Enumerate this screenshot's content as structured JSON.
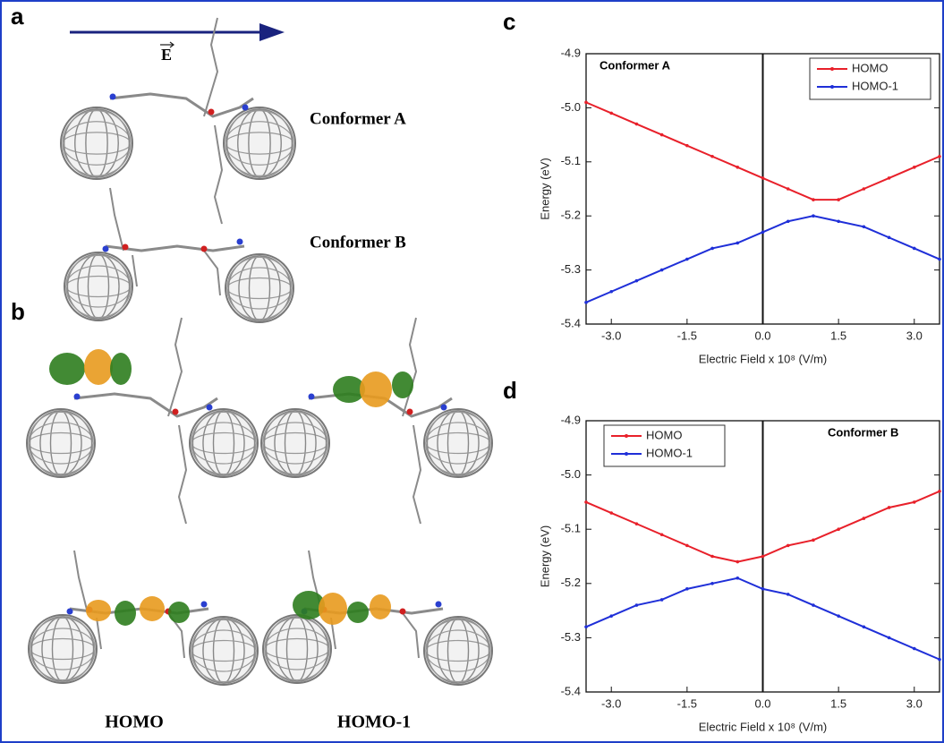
{
  "panel_labels": [
    "a",
    "b",
    "c",
    "d"
  ],
  "panel_a": {
    "field_label": "E",
    "conformers": [
      "Conformer A",
      "Conformer B"
    ]
  },
  "panel_b": {
    "orbitals": [
      "HOMO",
      "HOMO-1"
    ]
  },
  "chart_data": [
    {
      "type": "line",
      "annotation": "Conformer A",
      "legend": "upper right",
      "x_label": "Electric Field x 10⁸ (V/m)",
      "y_label": "Energy (eV)",
      "x": [
        -3.5,
        -3,
        -2.5,
        -2,
        -1.5,
        -1,
        -0.5,
        0,
        0.5,
        1,
        1.5,
        2,
        2.5,
        3,
        3.5
      ],
      "series": [
        {
          "name": "HOMO",
          "color": "#e8202a",
          "values": [
            -4.99,
            -5.01,
            -5.03,
            -5.05,
            -5.07,
            -5.09,
            -5.11,
            -5.13,
            -5.15,
            -5.17,
            -5.17,
            -5.15,
            -5.13,
            -5.11,
            -5.09
          ]
        },
        {
          "name": "HOMO-1",
          "color": "#1f2fd8",
          "values": [
            -5.36,
            -5.34,
            -5.32,
            -5.3,
            -5.28,
            -5.26,
            -5.25,
            -5.23,
            -5.21,
            -5.2,
            -5.21,
            -5.22,
            -5.24,
            -5.26,
            -5.28
          ]
        }
      ],
      "xlim": [
        -3.5,
        3.5
      ],
      "xticks": [
        {
          "value": -3,
          "label": "-3.0"
        },
        {
          "value": -1.5,
          "label": "-1.5"
        },
        {
          "value": 0,
          "label": "0.0"
        },
        {
          "value": 1.5,
          "label": "1.5"
        },
        {
          "value": 3,
          "label": "3.0"
        }
      ],
      "ylim": [
        -5.4,
        -4.9
      ],
      "yticks": [
        {
          "value": -5.4,
          "label": "-5.4"
        },
        {
          "value": -5.3,
          "label": "-5.3"
        },
        {
          "value": -5.2,
          "label": "-5.2"
        },
        {
          "value": -5.1,
          "label": "-5.1"
        },
        {
          "value": -5,
          "label": "-5.0"
        },
        -4.9
      ],
      "zero_line": 0
    },
    {
      "type": "line",
      "annotation": "Conformer B",
      "legend": "upper left",
      "x_label": "Electric Field x 10⁸ (V/m)",
      "y_label": "Energy (eV)",
      "x": [
        -3.5,
        -3,
        -2.5,
        -2,
        -1.5,
        -1,
        -0.5,
        0,
        0.5,
        1,
        1.5,
        2,
        2.5,
        3,
        3.5
      ],
      "series": [
        {
          "name": "HOMO",
          "color": "#e8202a",
          "values": [
            -5.05,
            -5.07,
            -5.09,
            -5.11,
            -5.13,
            -5.15,
            -5.16,
            -5.15,
            -5.13,
            -5.12,
            -5.1,
            -5.08,
            -5.06,
            -5.05,
            -5.03
          ]
        },
        {
          "name": "HOMO-1",
          "color": "#1f2fd8",
          "values": [
            -5.28,
            -5.26,
            -5.24,
            -5.23,
            -5.21,
            -5.2,
            -5.19,
            -5.21,
            -5.22,
            -5.24,
            -5.26,
            -5.28,
            -5.3,
            -5.32,
            -5.34
          ]
        }
      ],
      "xlim": [
        -3.5,
        3.5
      ],
      "xticks": [
        {
          "value": -3,
          "label": "-3.0"
        },
        {
          "value": -1.5,
          "label": "-1.5"
        },
        {
          "value": 0,
          "label": "0.0"
        },
        {
          "value": 1.5,
          "label": "1.5"
        },
        {
          "value": 3,
          "label": "3.0"
        }
      ],
      "ylim": [
        -5.4,
        -4.9
      ],
      "yticks": [
        {
          "value": -5.4,
          "label": "-5.4"
        },
        {
          "value": -5.3,
          "label": "-5.3"
        },
        {
          "value": -5.2,
          "label": "-5.2"
        },
        {
          "value": -5.1,
          "label": "-5.1"
        },
        {
          "value": -5,
          "label": "-5.0"
        },
        -4.9
      ],
      "zero_line": 0
    }
  ]
}
